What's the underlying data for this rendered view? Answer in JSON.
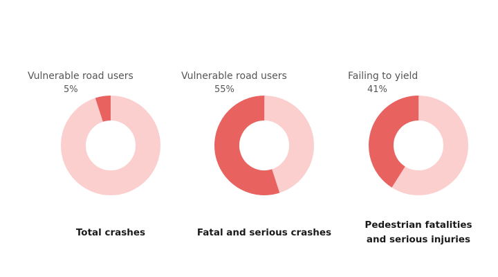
{
  "colors": {
    "highlight": "#e8625f",
    "remainder": "#fccfcf"
  },
  "chart_data": [
    {
      "type": "pie",
      "title": "Total crashes",
      "slices": [
        {
          "label": "Vulnerable road users",
          "value": 5,
          "value_label": "5%",
          "color": "#e8625f"
        },
        {
          "label": "",
          "value": 95,
          "color": "#fccfcf"
        }
      ]
    },
    {
      "type": "pie",
      "title": "Fatal and serious crashes",
      "slices": [
        {
          "label": "Vulnerable road users",
          "value": 55,
          "value_label": "55%",
          "color": "#e8625f"
        },
        {
          "label": "",
          "value": 45,
          "color": "#fccfcf"
        }
      ]
    },
    {
      "type": "pie",
      "title": "Pedestrian fatalities\nand serious injuries",
      "slices": [
        {
          "label": "Failing to yield",
          "value": 41,
          "value_label": "41%",
          "color": "#e8625f"
        },
        {
          "label": "",
          "value": 59,
          "color": "#fccfcf"
        }
      ]
    }
  ]
}
